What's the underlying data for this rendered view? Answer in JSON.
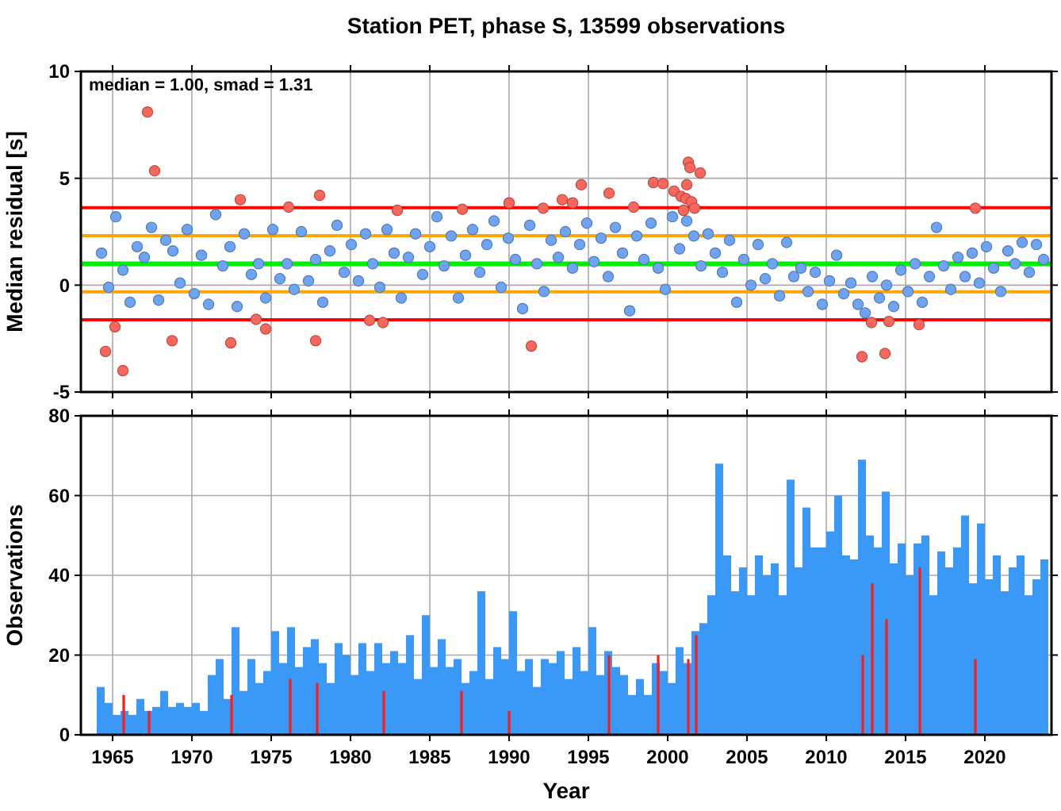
{
  "chart_data": [
    {
      "type": "scatter",
      "title": "Station PET, phase S, 13599 observations",
      "ylabel": "Median residual [s]",
      "annotations": [
        "median = 1.00, smad = 1.31"
      ],
      "xlim": [
        1963,
        2024.2
      ],
      "xticks": [
        1965,
        1970,
        1975,
        1980,
        1985,
        1990,
        1995,
        2000,
        2005,
        2010,
        2015,
        2020
      ],
      "ylim": [
        -5,
        10
      ],
      "yticks": [
        -5,
        0,
        5,
        10
      ],
      "grid": true,
      "tick_labels": "y",
      "marker": "circle",
      "ref_lines": [
        {
          "axis": "y",
          "value": 1.0,
          "color": "#00ee00"
        },
        {
          "axis": "y",
          "value": 2.31,
          "color": "#ffa500"
        },
        {
          "axis": "y",
          "value": -0.31,
          "color": "#ffa500"
        },
        {
          "axis": "y",
          "value": 3.62,
          "color": "#ff0000"
        },
        {
          "axis": "y",
          "value": -1.62,
          "color": "#ff0000"
        }
      ],
      "series": [
        {
          "color": "#6fa3f3",
          "x": [
            1964.3,
            1964.75,
            1965.2,
            1965.65,
            1966.1,
            1966.55,
            1967.0,
            1967.45,
            1967.9,
            1968.35,
            1968.8,
            1969.25,
            1969.7,
            1970.15,
            1970.6,
            1971.05,
            1971.5,
            1971.95,
            1972.4,
            1972.85,
            1973.3,
            1973.75,
            1974.2,
            1974.65,
            1975.1,
            1975.55,
            1976.0,
            1976.45,
            1976.9,
            1977.35,
            1977.8,
            1978.25,
            1978.7,
            1979.15,
            1979.6,
            1980.05,
            1980.5,
            1980.95,
            1981.4,
            1981.85,
            1982.3,
            1982.75,
            1983.2,
            1983.65,
            1984.1,
            1984.55,
            1985.0,
            1985.45,
            1985.9,
            1986.35,
            1986.8,
            1987.25,
            1987.7,
            1988.15,
            1988.6,
            1989.05,
            1989.5,
            1989.95,
            1990.4,
            1990.85,
            1991.3,
            1991.75,
            1992.2,
            1992.65,
            1993.1,
            1993.55,
            1994.0,
            1994.45,
            1994.9,
            1995.35,
            1995.8,
            1996.25,
            1996.7,
            1997.15,
            1997.6,
            1998.05,
            1998.5,
            1998.95,
            1999.4,
            1999.85,
            2000.3,
            2000.75,
            2001.2,
            2001.65,
            2002.1,
            2002.55,
            2003.0,
            2003.45,
            2003.9,
            2004.35,
            2004.8,
            2005.25,
            2005.7,
            2006.15,
            2006.6,
            2007.05,
            2007.5,
            2007.95,
            2008.4,
            2008.85,
            2009.3,
            2009.75,
            2010.2,
            2010.65,
            2011.1,
            2011.55,
            2012.0,
            2012.45,
            2012.9,
            2013.35,
            2013.8,
            2014.25,
            2014.7,
            2015.15,
            2015.6,
            2016.05,
            2016.5,
            2016.95,
            2017.4,
            2017.85,
            2018.3,
            2018.75,
            2019.2,
            2019.65,
            2020.1,
            2020.55,
            2021.0,
            2021.45,
            2021.9,
            2022.35,
            2022.8,
            2023.25,
            2023.7
          ],
          "values": [
            1.5,
            -0.1,
            3.2,
            0.7,
            -0.8,
            1.8,
            1.3,
            2.7,
            -0.7,
            2.1,
            1.6,
            0.1,
            2.6,
            -0.4,
            1.4,
            -0.9,
            3.3,
            0.9,
            1.8,
            -1.0,
            2.4,
            0.5,
            1.0,
            -0.6,
            2.6,
            0.3,
            1.0,
            -0.2,
            2.5,
            0.2,
            1.2,
            -0.8,
            1.6,
            2.8,
            0.6,
            1.9,
            0.2,
            2.4,
            1.0,
            -0.1,
            2.6,
            1.5,
            -0.6,
            1.3,
            2.4,
            0.5,
            1.8,
            3.2,
            0.9,
            2.3,
            -0.6,
            1.4,
            2.6,
            0.6,
            1.9,
            3.0,
            -0.1,
            2.2,
            1.2,
            -1.1,
            2.8,
            1.0,
            -0.3,
            2.1,
            1.3,
            2.5,
            0.8,
            1.9,
            2.9,
            1.1,
            2.2,
            0.4,
            2.7,
            1.5,
            -1.2,
            2.3,
            1.2,
            2.9,
            0.8,
            -0.2,
            3.2,
            1.7,
            3.0,
            2.3,
            0.9,
            2.4,
            1.5,
            0.6,
            2.1,
            -0.8,
            1.2,
            0.0,
            1.9,
            0.3,
            1.0,
            -0.5,
            2.0,
            0.4,
            0.8,
            -0.3,
            0.6,
            -0.9,
            0.2,
            1.4,
            -0.4,
            0.1,
            -0.9,
            -1.3,
            0.4,
            -0.6,
            0.0,
            -1.0,
            0.7,
            -0.3,
            1.0,
            -0.8,
            0.4,
            2.7,
            0.9,
            -0.2,
            1.3,
            0.4,
            1.5,
            0.1,
            1.8,
            0.8,
            -0.3,
            1.6,
            1.0,
            2.0,
            0.6,
            1.9,
            1.2
          ]
        },
        {
          "color": "#f8665c",
          "x": [
            1964.55,
            1965.15,
            1965.65,
            1967.2,
            1967.65,
            1968.75,
            1972.45,
            1973.05,
            1974.05,
            1974.65,
            1976.1,
            1977.8,
            1978.05,
            1981.2,
            1982.05,
            1982.95,
            1987.05,
            1990.0,
            1991.4,
            1992.15,
            1993.35,
            1994.0,
            1994.55,
            1996.3,
            1997.85,
            1999.1,
            1999.7,
            2000.4,
            2000.85,
            2001.0,
            2001.15,
            2001.2,
            2001.3,
            2001.4,
            2001.5,
            2001.7,
            2002.05,
            2012.25,
            2012.85,
            2013.7,
            2013.95,
            2015.85,
            2019.4
          ],
          "values": [
            -3.1,
            -1.95,
            -4.0,
            8.1,
            5.35,
            -2.6,
            -2.7,
            4.0,
            -1.6,
            -2.05,
            3.65,
            -2.6,
            4.2,
            -1.65,
            -1.75,
            3.5,
            3.55,
            3.85,
            -2.85,
            3.6,
            4.0,
            3.85,
            4.7,
            4.3,
            3.65,
            4.8,
            4.75,
            4.4,
            4.15,
            3.5,
            4.05,
            4.7,
            5.75,
            5.5,
            3.9,
            3.6,
            5.25,
            -3.35,
            -1.75,
            -3.2,
            -1.7,
            -1.85,
            3.6
          ]
        }
      ]
    },
    {
      "type": "bar",
      "xlabel": "Year",
      "ylabel": "Observations",
      "xlim": [
        1963,
        2024.2
      ],
      "xticks": [
        1965,
        1970,
        1975,
        1980,
        1985,
        1990,
        1995,
        2000,
        2005,
        2010,
        2015,
        2020
      ],
      "ylim": [
        0,
        80
      ],
      "yticks": [
        0,
        20,
        40,
        60,
        80
      ],
      "grid": true,
      "series": [
        {
          "color": "#3a98f6",
          "x": [
            1964.25,
            1964.75,
            1965.25,
            1965.75,
            1966.25,
            1966.75,
            1967.25,
            1967.75,
            1968.25,
            1968.75,
            1969.25,
            1969.75,
            1970.25,
            1970.75,
            1971.25,
            1971.75,
            1972.25,
            1972.75,
            1973.25,
            1973.75,
            1974.25,
            1974.75,
            1975.25,
            1975.75,
            1976.25,
            1976.75,
            1977.25,
            1977.75,
            1978.25,
            1978.75,
            1979.25,
            1979.75,
            1980.25,
            1980.75,
            1981.25,
            1981.75,
            1982.25,
            1982.75,
            1983.25,
            1983.75,
            1984.25,
            1984.75,
            1985.25,
            1985.75,
            1986.25,
            1986.75,
            1987.25,
            1987.75,
            1988.25,
            1988.75,
            1989.25,
            1989.75,
            1990.25,
            1990.75,
            1991.25,
            1991.75,
            1992.25,
            1992.75,
            1993.25,
            1993.75,
            1994.25,
            1994.75,
            1995.25,
            1995.75,
            1996.25,
            1996.75,
            1997.25,
            1997.75,
            1998.25,
            1998.75,
            1999.25,
            1999.75,
            2000.25,
            2000.75,
            2001.25,
            2001.75,
            2002.25,
            2002.75,
            2003.25,
            2003.75,
            2004.25,
            2004.75,
            2005.25,
            2005.75,
            2006.25,
            2006.75,
            2007.25,
            2007.75,
            2008.25,
            2008.75,
            2009.25,
            2009.75,
            2010.25,
            2010.75,
            2011.25,
            2011.75,
            2012.25,
            2012.75,
            2013.25,
            2013.75,
            2014.25,
            2014.75,
            2015.25,
            2015.75,
            2016.25,
            2016.75,
            2017.25,
            2017.75,
            2018.25,
            2018.75,
            2019.25,
            2019.75,
            2020.25,
            2020.75,
            2021.25,
            2021.75,
            2022.25,
            2022.75,
            2023.25,
            2023.75
          ],
          "values": [
            12,
            8,
            5,
            6,
            5,
            9,
            6,
            7,
            11,
            7,
            8,
            7,
            8,
            6,
            15,
            19,
            9,
            27,
            11,
            19,
            13,
            16,
            26,
            18,
            27,
            17,
            22,
            24,
            18,
            13,
            23,
            20,
            15,
            23,
            16,
            23,
            18,
            21,
            18,
            25,
            14,
            30,
            17,
            24,
            17,
            19,
            13,
            16,
            36,
            14,
            22,
            19,
            31,
            16,
            19,
            12,
            19,
            18,
            21,
            14,
            22,
            16,
            27,
            15,
            21,
            17,
            15,
            10,
            14,
            10,
            18,
            16,
            13,
            22,
            18,
            26,
            28,
            35,
            68,
            45,
            36,
            42,
            35,
            45,
            40,
            43,
            35,
            64,
            42,
            57,
            47,
            47,
            51,
            60,
            45,
            44,
            69,
            50,
            47,
            61,
            43,
            48,
            40,
            48,
            50,
            35,
            46,
            42,
            47,
            55,
            38,
            53,
            39,
            45,
            36,
            42,
            45,
            35,
            39,
            44
          ]
        },
        {
          "color": "#ff1a1a",
          "x": [
            1965.7,
            1967.3,
            1972.5,
            1976.2,
            1977.9,
            1982.1,
            1987.0,
            1990.0,
            1996.3,
            1999.4,
            2001.3,
            2001.8,
            2012.3,
            2012.9,
            2013.8,
            2015.9,
            2019.4
          ],
          "values": [
            10,
            6,
            10,
            14,
            13,
            11,
            11,
            6,
            20,
            20,
            19,
            25,
            20,
            38,
            29,
            42,
            19
          ]
        }
      ]
    }
  ]
}
